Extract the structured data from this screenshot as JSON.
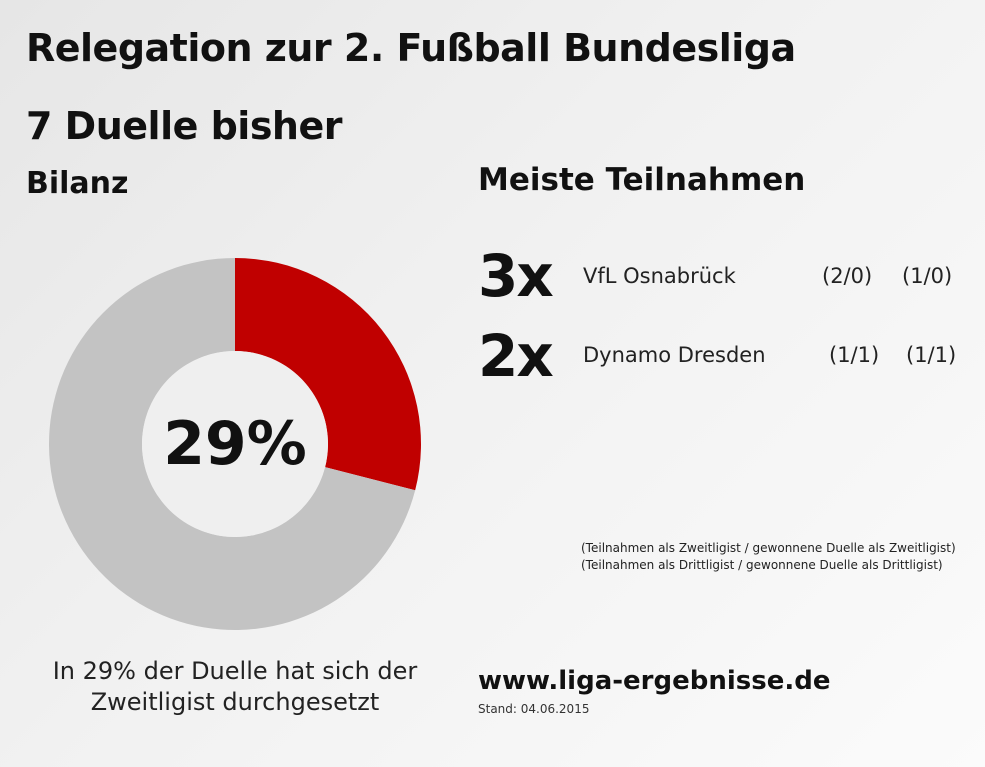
{
  "header": {
    "title": "Relegation zur 2. Fußball Bundesliga",
    "subtitle": "7 Duelle bisher",
    "left_heading": "Bilanz",
    "right_heading": "Meiste Teilnahmen"
  },
  "chart_data": {
    "type": "pie",
    "subtype": "donut",
    "center_label": "29%",
    "slices": [
      {
        "label": "Zweitligist durchgesetzt",
        "value": 29,
        "color": "#c00000"
      },
      {
        "label": "Rest",
        "value": 71,
        "color": "#c3c3c3"
      }
    ]
  },
  "caption": "In 29% der Duelle hat sich der Zweitligist durchgesetzt",
  "participations": [
    {
      "count": "3x",
      "team": "VfL Osnabrück",
      "second_league": "(2/0)",
      "third_league": "(1/0)"
    },
    {
      "count": "2x",
      "team": "Dynamo Dresden",
      "second_league": "(1/1)",
      "third_league": "(1/1)"
    }
  ],
  "notes": [
    "(Teilnahmen als Zweitligist / gewonnene Duelle als Zweitligist)",
    "(Teilnahmen als Drittligist / gewonnene Duelle als Drittligist)"
  ],
  "footer": {
    "site": "www.liga-ergebnisse.de",
    "stand": "Stand: 04.06.2015"
  }
}
